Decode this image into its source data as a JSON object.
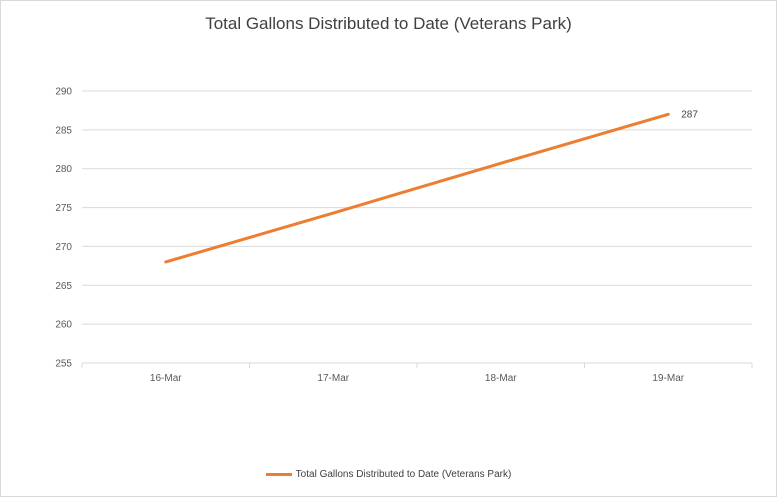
{
  "chart_data": {
    "type": "line",
    "title": "Total Gallons Distributed to Date (Veterans Park)",
    "categories": [
      "16-Mar",
      "17-Mar",
      "18-Mar",
      "19-Mar"
    ],
    "series": [
      {
        "name": "Total Gallons Distributed to Date (Veterans Park)",
        "values": [
          268,
          274.3,
          280.7,
          287
        ],
        "color": "#ED7D31"
      }
    ],
    "data_labels": [
      {
        "index": 3,
        "text": "287"
      }
    ],
    "ylim": [
      255,
      290
    ],
    "yticks": [
      255,
      260,
      265,
      270,
      275,
      280,
      285,
      290
    ],
    "grid": true,
    "legend_position": "bottom"
  }
}
